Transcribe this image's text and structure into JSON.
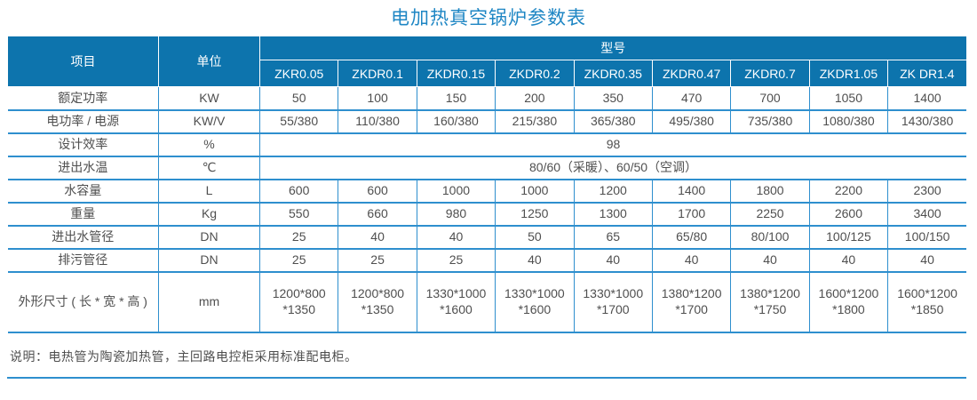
{
  "title": "电加热真空锅炉参数表",
  "colors": {
    "header_bg": "#0d74ad",
    "header_text": "#ffffff",
    "border": "#2e8fce",
    "title_color": "#1e86c4",
    "text": "#4f4f4f"
  },
  "table": {
    "header": {
      "item_label": "项目",
      "unit_label": "单位",
      "model_group_label": "型号",
      "models": [
        "ZKR0.05",
        "ZKDR0.1",
        "ZKDR0.15",
        "ZKDR0.2",
        "ZKDR0.35",
        "ZKDR0.47",
        "ZKDR0.7",
        "ZKDR1.05",
        "ZK DR1.4"
      ]
    },
    "rows": [
      {
        "item": "额定功率",
        "unit": "KW",
        "values": [
          "50",
          "100",
          "150",
          "200",
          "350",
          "470",
          "700",
          "1050",
          "1400"
        ]
      },
      {
        "item": "电功率 / 电源",
        "unit": "KW/V",
        "values": [
          "55/380",
          "110/380",
          "160/380",
          "215/380",
          "365/380",
          "495/380",
          "735/380",
          "1080/380",
          "1430/380"
        ]
      },
      {
        "item": "设计效率",
        "unit": "%",
        "span_value": "98"
      },
      {
        "item": "进出水温",
        "unit": "℃",
        "span_value": "80/60（采暖）、60/50（空调）"
      },
      {
        "item": "水容量",
        "unit": "L",
        "values": [
          "600",
          "600",
          "1000",
          "1000",
          "1200",
          "1400",
          "1800",
          "2200",
          "2300"
        ]
      },
      {
        "item": "重量",
        "unit": "Kg",
        "values": [
          "550",
          "660",
          "980",
          "1250",
          "1300",
          "1700",
          "2250",
          "2600",
          "3400"
        ]
      },
      {
        "item": "进出水管径",
        "unit": "DN",
        "values": [
          "25",
          "40",
          "40",
          "50",
          "65",
          "65/80",
          "80/100",
          "100/125",
          "100/150"
        ]
      },
      {
        "item": "排污管径",
        "unit": "DN",
        "values": [
          "25",
          "25",
          "25",
          "40",
          "40",
          "40",
          "40",
          "40",
          "40"
        ]
      },
      {
        "item": "外形尺寸 ( 长 * 宽 * 高 )",
        "unit": "mm",
        "values": [
          "1200*800\n*1350",
          "1200*800\n*1350",
          "1330*1000\n*1600",
          "1330*1000\n*1600",
          "1330*1000\n*1700",
          "1380*1200\n*1700",
          "1380*1200\n*1750",
          "1600*1200\n*1800",
          "1600*1200\n*1850"
        ]
      }
    ]
  },
  "note": "说明：电热管为陶瓷加热管，主回路电控柜采用标准配电柜。"
}
